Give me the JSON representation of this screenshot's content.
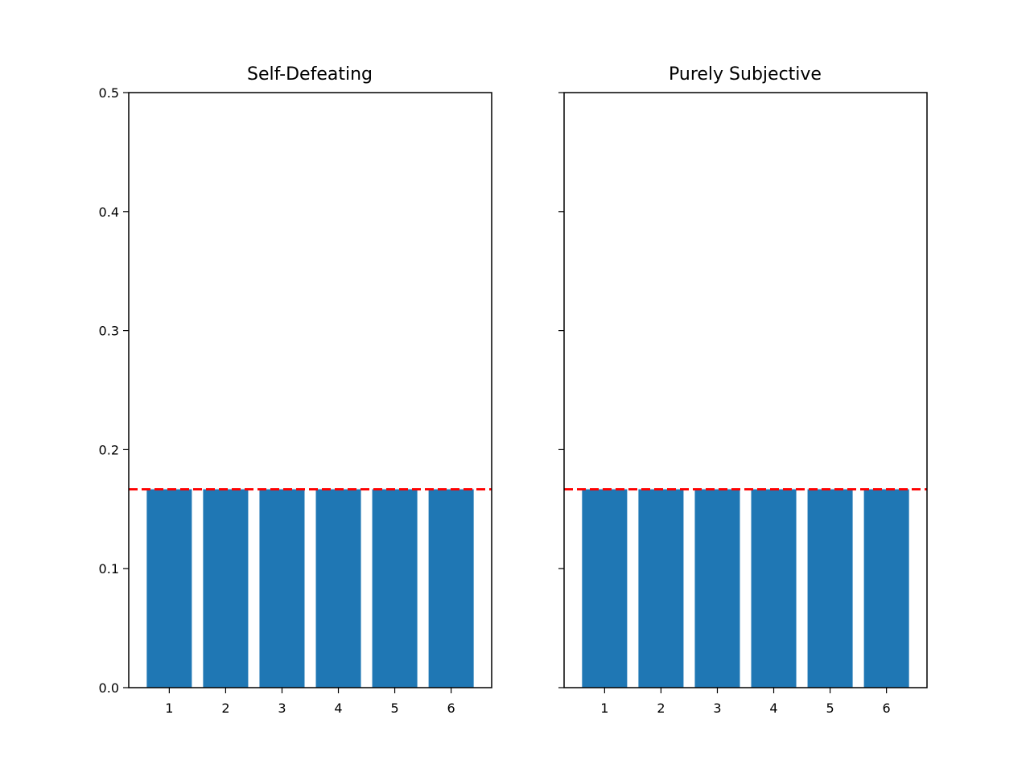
{
  "chart_data": [
    {
      "type": "bar",
      "title": "Self-Defeating",
      "categories": [
        "1",
        "2",
        "3",
        "4",
        "5",
        "6"
      ],
      "values": [
        0.1667,
        0.1667,
        0.1667,
        0.1667,
        0.1667,
        0.1667
      ],
      "reference_line": {
        "y": 0.1667,
        "color": "#ff0000",
        "style": "dashed"
      },
      "xlabel": "",
      "ylabel": "",
      "ylim": [
        0,
        0.5
      ],
      "yticks": [
        "0.0",
        "0.1",
        "0.2",
        "0.3",
        "0.4",
        "0.5"
      ],
      "bar_color": "#1f77b4",
      "grid": false
    },
    {
      "type": "bar",
      "title": "Purely Subjective",
      "categories": [
        "1",
        "2",
        "3",
        "4",
        "5",
        "6"
      ],
      "values": [
        0.1667,
        0.1667,
        0.1667,
        0.1667,
        0.1667,
        0.1667
      ],
      "reference_line": {
        "y": 0.1667,
        "color": "#ff0000",
        "style": "dashed"
      },
      "xlabel": "",
      "ylabel": "",
      "ylim": [
        0,
        0.5
      ],
      "yticks": [],
      "bar_color": "#1f77b4",
      "grid": false
    }
  ]
}
